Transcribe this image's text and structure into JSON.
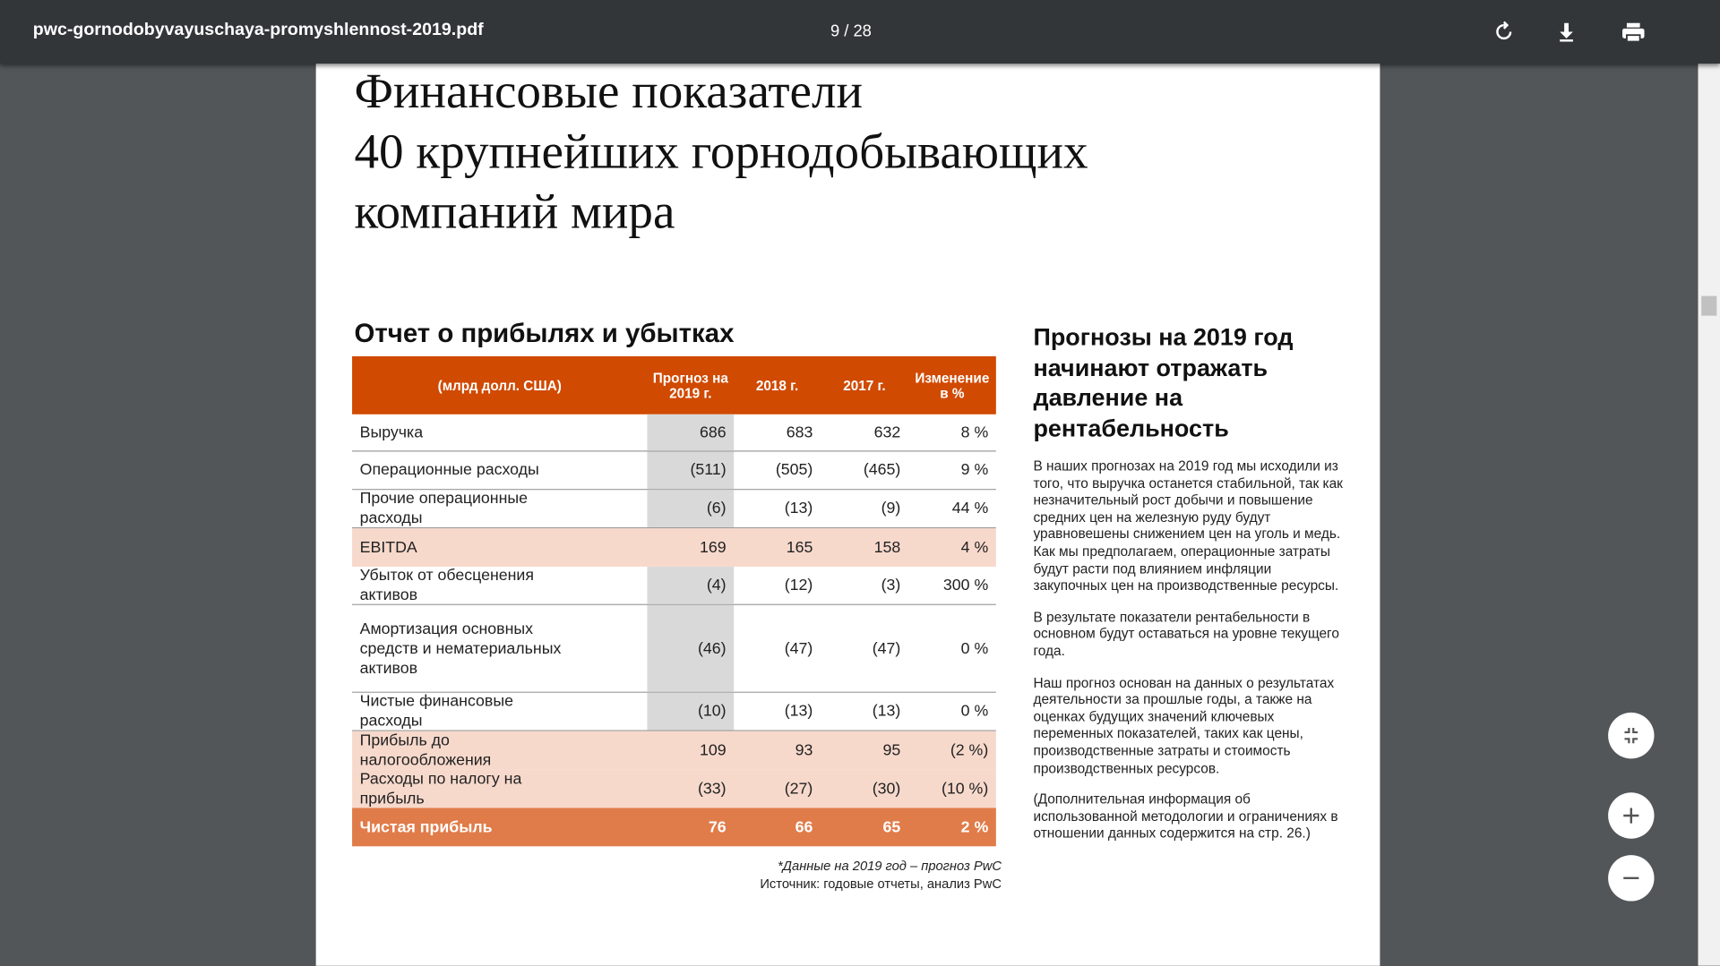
{
  "toolbar": {
    "filename": "pwc-gornodobyvayuschaya-promyshlennost-2019.pdf",
    "page_indicator": "9 / 28"
  },
  "document": {
    "title": [
      "Финансовые показатели",
      "40 крупнейших горнодобывающих",
      "компаний мира"
    ],
    "table": {
      "heading": "Отчет о прибылях и убытках",
      "header": [
        "(млрд долл. США)",
        "Прогноз на 2019 г.",
        "2018 г.",
        "2017 г.",
        "Изменение в %"
      ],
      "rows": [
        [
          "Выручка",
          "686",
          "683",
          "632",
          "8 %"
        ],
        [
          "Операционные расходы",
          "(511)",
          "(505)",
          "(465)",
          "9 %"
        ],
        [
          "Прочие операционные расходы",
          "(6)",
          "(13)",
          "(9)",
          "44 %"
        ],
        [
          "EBITDA",
          "169",
          "165",
          "158",
          "4 %"
        ],
        [
          "Убыток от обесценения активов",
          "(4)",
          "(12)",
          "(3)",
          "300 %"
        ],
        [
          "Амортизация основных средств и нематериальных активов",
          "(46)",
          "(47)",
          "(47)",
          "0 %"
        ],
        [
          "Чистые финансовые расходы",
          "(10)",
          "(13)",
          "(13)",
          "0 %"
        ],
        [
          "Прибыль до налогообложения",
          "109",
          "93",
          "95",
          "(2 %)"
        ],
        [
          "Расходы по налогу на прибыль",
          "(33)",
          "(27)",
          "(30)",
          "(10 %)"
        ],
        [
          "Чистая прибыль",
          "76",
          "66",
          "65",
          "2 %"
        ]
      ],
      "footnotes": [
        "*Данные на 2019 год – прогноз PwC",
        "Источник: годовые отчеты, анализ PwC"
      ]
    },
    "sidebar": {
      "heading": "Прогнозы на 2019 год начинают отражать давление на рентабельность",
      "paragraphs": [
        "В наших прогнозах на 2019 год мы исходили из того, что выручка останется стабильной, так как незначительный рост добычи и повышение средних цен на железную руду будут уравновешены снижением цен на уголь и медь. Как мы предполагаем, операционные затраты будут расти под влиянием инфляции закупочных цен на производственные ресурсы.",
        "В результате показатели рентабельности в основном будут оставаться на уровне текущего года.",
        "Наш прогноз основан на данных о результатах деятельности за прошлые годы, а также на оценках будущих значений ключевых переменных показателей, таких как цены, производственные затраты и стоимость производственных ресурсов.",
        "(Дополнительная информация об использованной методологии и ограничениях в отношении данных содержится на стр. 26.)"
      ]
    }
  }
}
